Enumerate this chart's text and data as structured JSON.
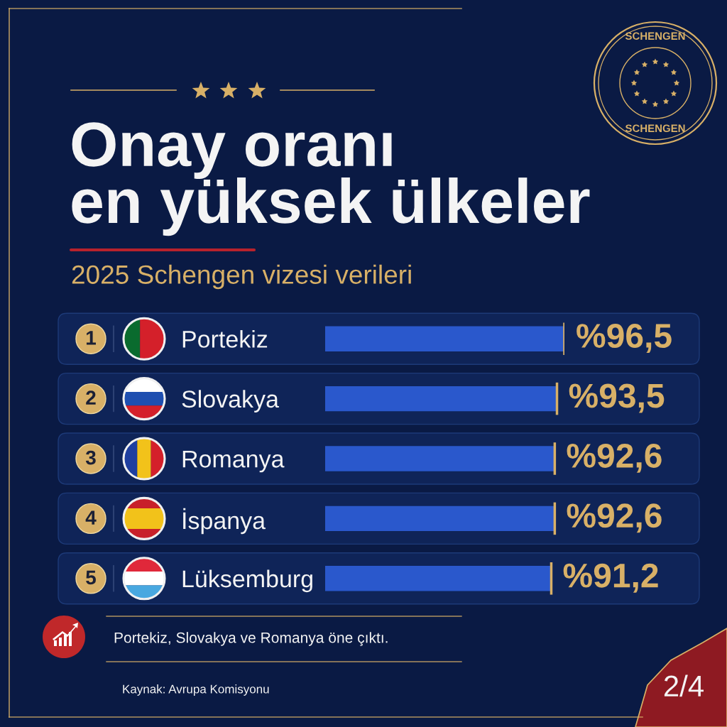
{
  "chart_data": {
    "type": "bar",
    "orientation": "horizontal",
    "title": "Onay oranı\nen yüksek ülkeler",
    "subtitle": "2025 Schengen vizesi verileri",
    "categories": [
      "Portekiz",
      "Slovakya",
      "Romanya",
      "İspanya",
      "Lüksemburg"
    ],
    "values": [
      96.5,
      93.5,
      92.6,
      92.6,
      91.2
    ],
    "value_labels": [
      "%96,5",
      "%93,5",
      "%92,6",
      "%92,6",
      "%91,2"
    ],
    "color": "#2a58cc",
    "tick_labels": "y",
    "annotations": [
      "1",
      "2",
      "3",
      "4",
      "5",
      "Portekiz, Slovakya ve Romanya öne çıktı.",
      "Kaynak: Avrupa Komisyonu",
      "2/4",
      "SCHENGEN",
      "SCHENGEN"
    ]
  }
}
